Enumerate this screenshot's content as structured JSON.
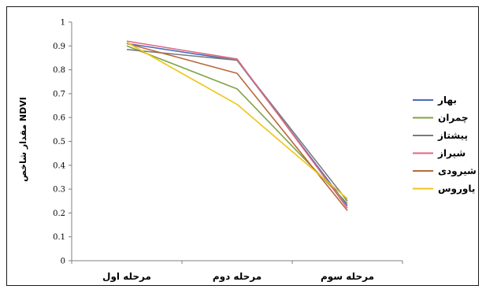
{
  "chart_data": {
    "type": "line",
    "categories": [
      "مرحله اول",
      "مرحله دوم",
      "مرحله سوم"
    ],
    "ylabel": "مقدار شاخص NDVI",
    "ylim": [
      0,
      1
    ],
    "yticks": [
      "0",
      "0.1",
      "0.2",
      "0.3",
      "0.4",
      "0.5",
      "0.6",
      "0.7",
      "0.8",
      "0.9",
      "1"
    ],
    "grid": false,
    "legend_position": "right",
    "series": [
      {
        "name": "بهار",
        "color": "#4a6ab8",
        "values": [
          0.91,
          0.84,
          0.23
        ]
      },
      {
        "name": "چمران",
        "color": "#7fa345",
        "values": [
          0.9,
          0.72,
          0.24
        ]
      },
      {
        "name": "پیشتاز",
        "color": "#7b7b7b",
        "values": [
          0.885,
          0.84,
          0.25
        ]
      },
      {
        "name": "شیراز",
        "color": "#e06680",
        "values": [
          0.92,
          0.845,
          0.22
        ]
      },
      {
        "name": "شیرودی",
        "color": "#b8683c",
        "values": [
          0.91,
          0.785,
          0.21
        ]
      },
      {
        "name": "یاوروس",
        "color": "#f0c419",
        "values": [
          0.915,
          0.655,
          0.26
        ]
      }
    ]
  }
}
